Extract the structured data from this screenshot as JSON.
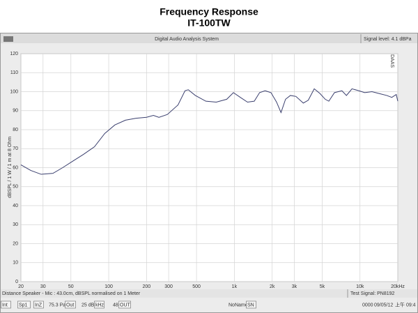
{
  "window": {
    "title": "Digital Audio Analysis System",
    "signal": "Signal level: 4.1 dBPa",
    "watermark": "DAAS"
  },
  "chart_data": {
    "type": "line",
    "title": "Frequency Response",
    "subtitle": "IT-100TW",
    "ylabel": "dBSPL / 1 W / 1 m at 8 Ohm",
    "x": [
      20,
      24,
      29,
      36,
      43,
      52,
      63,
      77,
      93,
      112,
      136,
      165,
      200,
      227,
      251,
      293,
      356,
      405,
      430,
      489,
      593,
      718,
      870,
      983,
      1116,
      1273,
      1441,
      1588,
      1757,
      1958,
      2168,
      2352,
      2555,
      2793,
      3090,
      3540,
      3875,
      4325,
      4809,
      5290,
      5650,
      6268,
      7180,
      7800,
      8640,
      9780,
      10900,
      12460,
      14260,
      16330,
      17920,
      19440,
      20000
    ],
    "values": [
      61.5,
      58.5,
      56.5,
      57,
      60,
      63.5,
      67,
      71,
      78,
      82.5,
      85,
      86,
      86.5,
      87.5,
      86.5,
      88,
      93,
      100.5,
      101,
      98,
      95,
      94.5,
      96,
      99.5,
      97,
      94.5,
      95,
      99.5,
      100.5,
      99.5,
      94.5,
      89,
      96,
      98,
      97.5,
      94,
      95.5,
      101.5,
      99,
      96,
      95,
      99.5,
      100.5,
      98,
      101.5,
      100.5,
      99.5,
      100,
      99,
      98,
      97,
      98.5,
      95
    ],
    "color": "#3a3f6e",
    "xscale": "log",
    "xlim": [
      20,
      20000
    ],
    "ylim": [
      0,
      120
    ],
    "xticks": [
      20,
      30,
      50,
      100,
      200,
      300,
      500,
      {
        "value": 1000,
        "label": "1k"
      },
      {
        "value": 2000,
        "label": "2k"
      },
      {
        "value": 3000,
        "label": "3k"
      },
      {
        "value": 5000,
        "label": "5k"
      },
      {
        "value": 10000,
        "label": "10k"
      },
      {
        "value": 20000,
        "label": "20kHz"
      }
    ],
    "yticks": [
      0,
      10,
      20,
      30,
      40,
      50,
      60,
      70,
      80,
      90,
      100,
      110,
      120
    ],
    "grid": true
  },
  "status": {
    "distance": "Distance Speaker - Mic : 43.0cm, dBSPL normalised on 1 Meter",
    "test_signal": "Test Signal: PN8192"
  },
  "toolbar": [
    "Int",
    "Sp1",
    "InZ",
    "75.3 Pa",
    "Out",
    "25 dB",
    "kHz",
    "48",
    "OUT",
    "NoName",
    "SN",
    "0000",
    "09/05/12",
    "上午 09:4"
  ]
}
